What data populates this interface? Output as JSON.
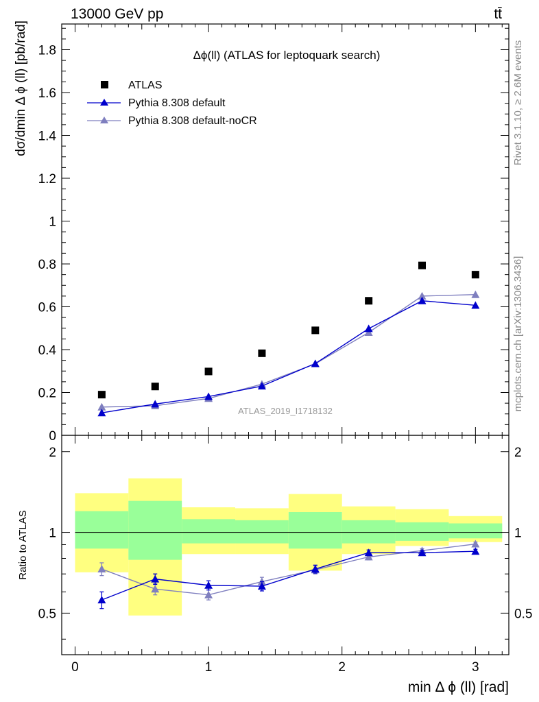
{
  "header": {
    "left": "13000 GeV pp",
    "right": "tt̄"
  },
  "side_labels": {
    "rivet": "Rivet 3.1.10, ≥ 2.6M events",
    "mcplots": "mcplots.cern.ch [arXiv:1306.3436]"
  },
  "watermark": "ATLAS_2019_I1718132",
  "colors": {
    "data": "#000000",
    "default": "#0000cc",
    "noCR": "#7f7fbf",
    "band_inner": "#99ff99",
    "band_outer": "#ffff80"
  },
  "chart_data": [
    {
      "type": "scatter",
      "title": "Δϕ(ll) (ATLAS for leptoquark search)",
      "ylabel": "dσ/dmin Δ ϕ (ll) [pb/rad]",
      "xlabel": "",
      "xlim": [
        -0.1,
        3.25
      ],
      "ylim": [
        0,
        1.92
      ],
      "y_ticks": [
        "0",
        "0.2",
        "0.4",
        "0.6",
        "0.8",
        "1",
        "1.2",
        "1.4",
        "1.6",
        "1.8"
      ],
      "legend_position": "top-left",
      "grid": false,
      "x": [
        0.2,
        0.6,
        1.0,
        1.4,
        1.8,
        2.2,
        2.6,
        3.0
      ],
      "series": [
        {
          "name": "ATLAS",
          "marker": "square",
          "values": [
            0.19,
            0.228,
            0.298,
            0.383,
            0.49,
            0.628,
            0.793,
            0.75
          ]
        },
        {
          "name": "Pythia 8.308 default",
          "marker": "triangle",
          "values": [
            0.105,
            0.146,
            0.181,
            0.23,
            0.335,
            0.498,
            0.628,
            0.607
          ],
          "errors": [
            0.005,
            0.005,
            0.005,
            0.006,
            0.008,
            0.012,
            0.012,
            0.012
          ]
        },
        {
          "name": "Pythia 8.308 default-noCR",
          "marker": "triangle",
          "values": [
            0.132,
            0.138,
            0.172,
            0.239,
            0.334,
            0.48,
            0.65,
            0.657
          ],
          "errors": [
            0.005,
            0.005,
            0.005,
            0.006,
            0.008,
            0.012,
            0.012,
            0.012
          ]
        }
      ]
    },
    {
      "type": "scatter",
      "title": "",
      "ylabel": "Ratio to ATLAS",
      "xlabel": "min Δ ϕ (ll) [rad]",
      "xlim": [
        -0.1,
        3.25
      ],
      "ylim": [
        0.35,
        2.3
      ],
      "y_ticks": [
        "0.5",
        "1",
        "2"
      ],
      "x_ticks": [
        "0",
        "1",
        "2",
        "3"
      ],
      "x": [
        0.2,
        0.6,
        1.0,
        1.4,
        1.8,
        2.2,
        2.6,
        3.0
      ],
      "bin_edges": [
        0.0,
        0.4,
        0.8,
        1.2,
        1.6,
        2.0,
        2.4,
        2.8,
        3.2
      ],
      "band_inner": {
        "low": [
          0.87,
          0.79,
          0.91,
          0.91,
          0.87,
          0.91,
          0.93,
          0.95
        ],
        "high": [
          1.2,
          1.31,
          1.12,
          1.11,
          1.19,
          1.11,
          1.09,
          1.08
        ]
      },
      "band_outer": {
        "low": [
          0.71,
          0.49,
          0.83,
          0.83,
          0.72,
          0.83,
          0.89,
          0.92
        ],
        "high": [
          1.4,
          1.59,
          1.24,
          1.23,
          1.39,
          1.25,
          1.22,
          1.15
        ]
      },
      "series": [
        {
          "name": "Pythia 8.308 default",
          "values": [
            0.56,
            0.67,
            0.635,
            0.63,
            0.73,
            0.84,
            0.84,
            0.85
          ],
          "errors": [
            0.04,
            0.03,
            0.025,
            0.025,
            0.025,
            0.02,
            0.015,
            0.015
          ]
        },
        {
          "name": "Pythia 8.308 default-noCR",
          "values": [
            0.73,
            0.615,
            0.585,
            0.655,
            0.725,
            0.81,
            0.855,
            0.905
          ],
          "errors": [
            0.04,
            0.03,
            0.025,
            0.025,
            0.025,
            0.02,
            0.015,
            0.015
          ]
        }
      ]
    }
  ]
}
